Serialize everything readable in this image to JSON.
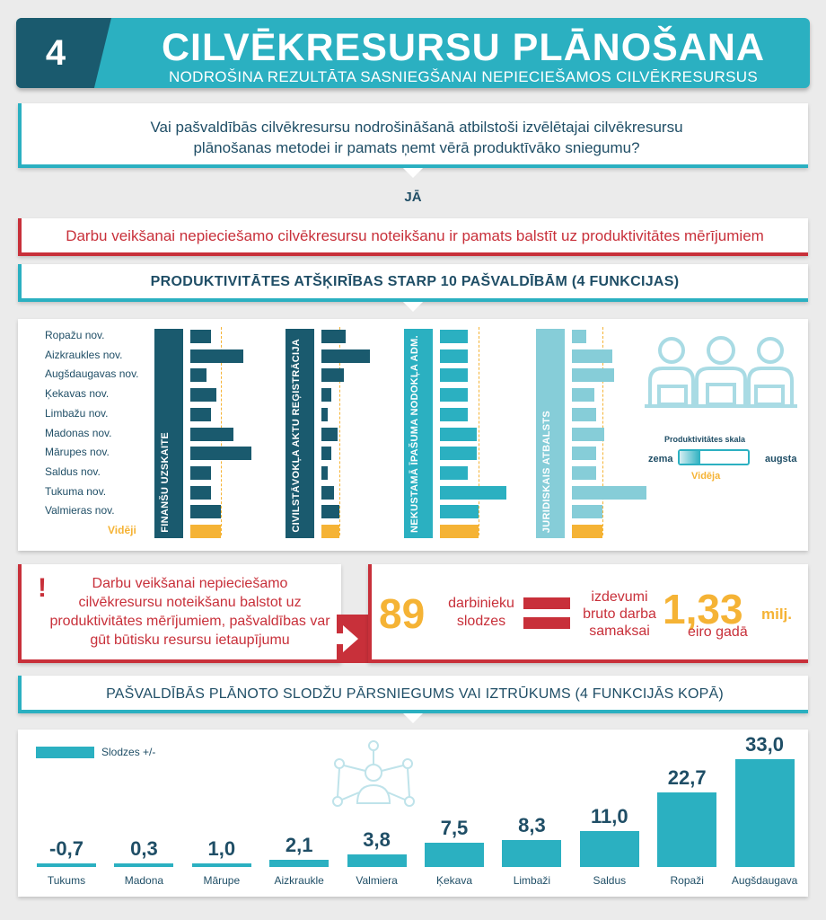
{
  "header": {
    "number": "4",
    "title": "CILVĒKRESURSU PLĀNOŠANA",
    "subtitle": "NODROŠINA REZULTĀTA SASNIEGŠANAI NEPIECIEŠAMOS CILVĒKRESURSUS"
  },
  "question": {
    "line1": "Vai pašvaldībās cilvēkresursu nodrošināšanā atbilstoši izvēlētajai cilvēkresursu",
    "line2": "plānošanas metodei ir pamats ņemt vērā produktīvāko sniegumu?"
  },
  "answer": "JĀ",
  "basis_statement": "Darbu veikšanai nepieciešamo cilvēkresursu noteikšanu ir pamats balstīt uz produktivitātes mērījumiem",
  "productivity": {
    "heading": "PRODUKTIVITĀTES ATŠĶIRĪBAS STARP 10 PAŠVALDĪBĀM (4 FUNKCIJAS)",
    "municipalities": [
      "Ropažu nov.",
      "Aizkraukles nov.",
      "Augšdaugavas nov.",
      "Ķekavas nov.",
      "Limbažu nov.",
      "Madonas nov.",
      "Mārupes nov.",
      "Saldus nov.",
      "Tukuma nov.",
      "Valmieras nov."
    ],
    "average_label": "Vidēji",
    "functions": [
      {
        "name": "FINANŠU UZSKAITE",
        "color": "#1a5a6e",
        "values": [
          0.25,
          0.66,
          0.2,
          0.32,
          0.25,
          0.53,
          0.75,
          0.25,
          0.25,
          0.38
        ],
        "average": 0.38
      },
      {
        "name": "CIVILSTĀVOKĻA AKTU REĢISTRĀCIJA",
        "color": "#1a5a6e",
        "values": [
          0.3,
          0.6,
          0.28,
          0.12,
          0.08,
          0.2,
          0.12,
          0.08,
          0.15,
          0.22
        ],
        "average": 0.22
      },
      {
        "name": "NEKUSTAMĀ ĪPAŠUMA NODOKĻA ADM.",
        "color": "#2bb0c1",
        "values": [
          0.35,
          0.35,
          0.35,
          0.35,
          0.35,
          0.45,
          0.45,
          0.35,
          0.82,
          0.48
        ],
        "average": 0.48
      },
      {
        "name": "JURIDISKAIS ATBALSTS",
        "color": "#86cdd8",
        "values": [
          0.18,
          0.5,
          0.52,
          0.28,
          0.3,
          0.4,
          0.3,
          0.3,
          0.92,
          0.38
        ],
        "average": 0.38
      }
    ],
    "scale": {
      "title": "Produktivitātes skala",
      "low": "zema",
      "high": "augsta",
      "mid": "Vidēja",
      "level": 0.3
    }
  },
  "savings": {
    "statement": "Darbu veikšanai nepieciešamo cilvēkresursu noteikšanu balstot uz produktivitātes mērījumiem, pašvaldības var gūt būtisku resursu ietaupījumu",
    "exclamation": "!",
    "workloads_value": "89",
    "workloads_label": "darbinieku slodzes",
    "expenses_label": "izdevumi bruto darba samaksai",
    "amount_value": "1,33",
    "amount_unit": "milj.",
    "amount_label": "eiro gadā"
  },
  "workload_chart": {
    "heading": "PAŠVALDĪBĀS PLĀNOTO SLODŽU PĀRSNIEGUMS VAI IZTRŪKUMS (4 FUNKCIJĀS KOPĀ)",
    "legend": "Slodzes +/-"
  },
  "chart_data": {
    "type": "bar",
    "categories": [
      "Tukums",
      "Madona",
      "Mārupe",
      "Aizkraukle",
      "Valmiera",
      "Ķekava",
      "Limbaži",
      "Saldus",
      "Ropaži",
      "Augšdaugava"
    ],
    "series": [
      {
        "name": "Slodzes +/-",
        "values": [
          -0.7,
          0.3,
          1.0,
          2.1,
          3.8,
          7.5,
          8.3,
          11.0,
          22.7,
          33.0
        ]
      }
    ],
    "value_labels": [
      "-0,7",
      "0,3",
      "1,0",
      "2,1",
      "3,8",
      "7,5",
      "8,3",
      "11,0",
      "22,7",
      "33,0"
    ],
    "color": "#2bb0c1"
  }
}
